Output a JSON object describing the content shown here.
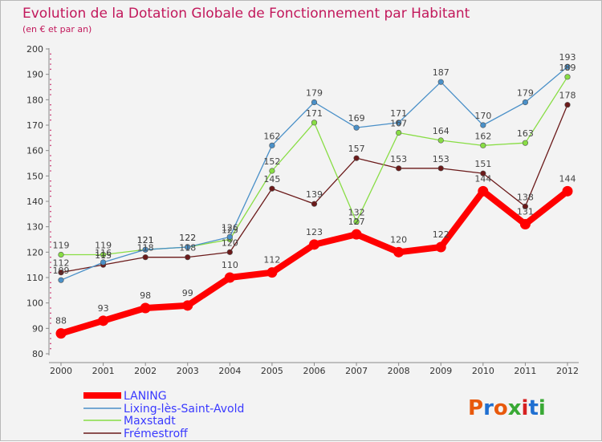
{
  "chart_data": {
    "type": "line",
    "title": "Evolution de la Dotation Globale de Fonctionnement par Habitant",
    "subtitle": "(en € et par an)",
    "xlabel": "",
    "ylabel": "",
    "x": [
      "2000",
      "2001",
      "2002",
      "2003",
      "2004",
      "2005",
      "2006",
      "2007",
      "2008",
      "2009",
      "2010",
      "2011",
      "2012"
    ],
    "ylim": [
      80,
      200
    ],
    "yticks": [
      80,
      90,
      100,
      110,
      120,
      130,
      140,
      150,
      160,
      170,
      180,
      190,
      200
    ],
    "grid": false,
    "legend_position": "bottom-left",
    "series": [
      {
        "name": "LANING",
        "color": "#ff0000",
        "values": [
          88,
          93,
          98,
          99,
          110,
          112,
          123,
          127,
          120,
          122,
          144,
          131,
          144
        ]
      },
      {
        "name": "Lixing-lès-Saint-Avold",
        "color": "#4a90c8",
        "values": [
          109,
          116,
          121,
          122,
          126,
          162,
          179,
          169,
          171,
          187,
          170,
          179,
          193
        ]
      },
      {
        "name": "Maxstadt",
        "color": "#88dd44",
        "values": [
          119,
          119,
          121,
          122,
          125,
          152,
          171,
          132,
          167,
          164,
          162,
          163,
          189
        ]
      },
      {
        "name": "Frémestroff",
        "color": "#6b1a1a",
        "values": [
          112,
          115,
          118,
          118,
          120,
          145,
          139,
          157,
          153,
          153,
          151,
          138,
          178
        ]
      }
    ]
  },
  "logo": {
    "text": "Proxiti",
    "colors": [
      "#e8590c",
      "#1f6fd1",
      "#e8590c",
      "#39a935",
      "#d62020",
      "#1f6fd1",
      "#39a935"
    ]
  }
}
